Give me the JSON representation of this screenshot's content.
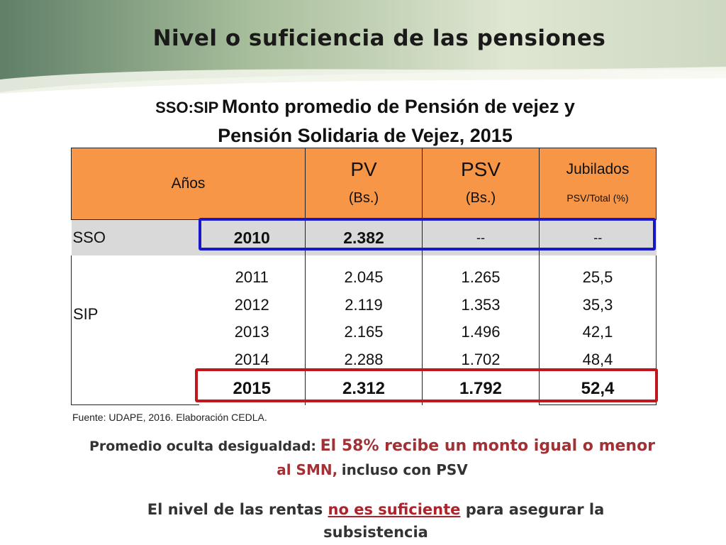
{
  "title": "Nivel o suficiencia de las pensiones",
  "subtitle": {
    "prefix": "SSO:SIP",
    "line1": "Monto promedio de Pensión de vejez y",
    "line2": "Pensión Solidaria de Vejez, 2015"
  },
  "table": {
    "headers": {
      "anos": "Años",
      "pv": "PV",
      "pv_unit": "(Bs.)",
      "psv": "PSV",
      "psv_unit": "(Bs.)",
      "jubilados": "Jubilados",
      "jubilados_unit": "PSV/Total (%)"
    },
    "sso": {
      "label": "SSO",
      "year": "2010",
      "pv": "2.382",
      "psv": "--",
      "jub": "--"
    },
    "sip": {
      "label": "SIP",
      "years": [
        "2011",
        "2012",
        "2013",
        "2014"
      ],
      "pv": [
        "2.045",
        "2.119",
        "2.165",
        "2.288"
      ],
      "psv": [
        "1.265",
        "1.353",
        "1.496",
        "1.702"
      ],
      "jub": [
        "25,5",
        "35,3",
        "42,1",
        "48,4"
      ]
    },
    "highlight_row": {
      "year": "2015",
      "pv": "2.312",
      "psv": "1.792",
      "jub": "52,4"
    }
  },
  "source": "Fuente: UDAPE, 2016. Elaboración CEDLA.",
  "note": {
    "lead": "Promedio oculta desigualdad:",
    "red1": "El 58% recibe un monto igual o menor",
    "red2": "al SMN,",
    "tail": "incluso con PSV"
  },
  "conclusion": {
    "part1": "El nivel de las rentas",
    "underlined": "no es suficiente",
    "part2": "para asegurar la",
    "part3": "subsistencia"
  },
  "colors": {
    "header_orange": "#f79646",
    "sso_grey": "#d9d9d9",
    "highlight_blue": "#1818c8",
    "highlight_red": "#c0161c",
    "accent_red_text": "#a33035"
  }
}
